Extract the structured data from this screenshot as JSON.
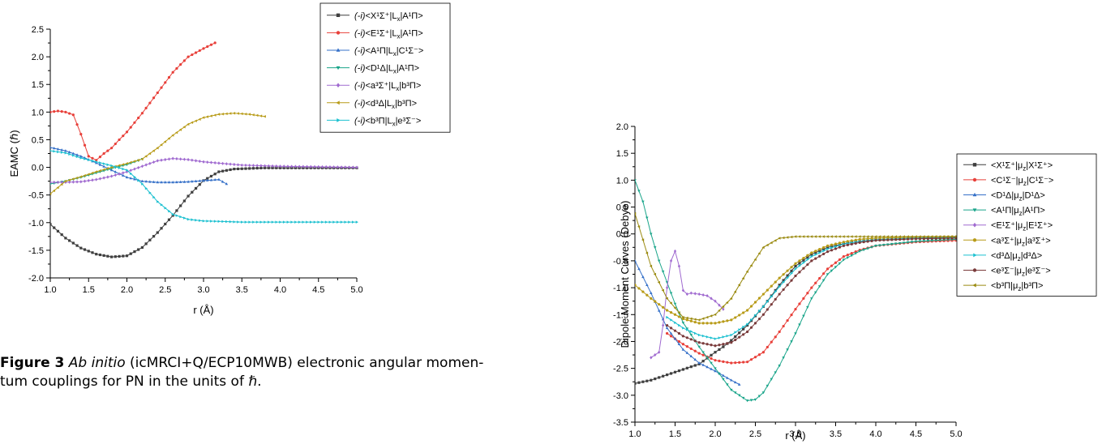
{
  "caption": {
    "label": "Figure 3",
    "italic": "Ab initio",
    "line1_rest": " (icMRCI+Q/ECP10MWB) electronic angular momen-",
    "line2": "tum couplings for PN in the units of ℏ."
  },
  "chart_data": [
    {
      "type": "line",
      "title": "",
      "xlabel": "r (Å)",
      "ylabel": "EAMC (ℏ)",
      "xlim": [
        1.0,
        5.0
      ],
      "ylim": [
        -2.0,
        2.5
      ],
      "xticks": [
        "1.0",
        "1.5",
        "2.0",
        "2.5",
        "3.0",
        "3.5",
        "4.0",
        "4.5",
        "5.0"
      ],
      "yticks": [
        "-2.0",
        "-1.5",
        "-1.0",
        "-0.5",
        "0.0",
        "0.5",
        "1.0",
        "1.5",
        "2.0",
        "2.5"
      ],
      "grid": false,
      "legend_position": "top-right",
      "series": [
        {
          "name_prefix": "(-i)",
          "name": "<X¹Σ⁺|Lx|A¹Π>",
          "color": "#3f3f3f",
          "marker": "square",
          "x": [
            1.0,
            1.2,
            1.4,
            1.6,
            1.8,
            2.0,
            2.2,
            2.4,
            2.6,
            2.8,
            3.0,
            3.2,
            3.4,
            3.6,
            3.8,
            4.0,
            4.5,
            5.0
          ],
          "y": [
            -1.03,
            -1.28,
            -1.46,
            -1.57,
            -1.62,
            -1.6,
            -1.45,
            -1.18,
            -0.87,
            -0.52,
            -0.24,
            -0.08,
            -0.03,
            -0.02,
            -0.01,
            -0.01,
            -0.01,
            -0.01
          ]
        },
        {
          "name_prefix": "(-i)",
          "name": "<E¹Σ⁺|Lx|A¹Π>",
          "color": "#e8403a",
          "marker": "circle",
          "x": [
            1.0,
            1.1,
            1.2,
            1.3,
            1.4,
            1.5,
            1.6,
            1.7,
            1.8,
            1.9,
            2.0,
            2.2,
            2.4,
            2.6,
            2.8,
            3.0,
            3.16
          ],
          "y": [
            1.0,
            1.02,
            1.0,
            0.95,
            0.6,
            0.2,
            0.13,
            0.25,
            0.35,
            0.5,
            0.64,
            0.98,
            1.35,
            1.72,
            2.0,
            2.15,
            2.26
          ]
        },
        {
          "name_prefix": "(-i)",
          "name": "<A¹Π|Lx|C¹Σ⁻>",
          "color": "#3570c8",
          "marker": "triangle",
          "x": [
            1.0,
            1.2,
            1.4,
            1.6,
            1.8,
            2.0,
            2.2,
            2.4,
            2.6,
            2.8,
            3.0,
            3.2,
            3.3
          ],
          "y": [
            0.36,
            0.3,
            0.2,
            0.08,
            -0.05,
            -0.18,
            -0.25,
            -0.27,
            -0.27,
            -0.26,
            -0.24,
            -0.22,
            -0.3
          ]
        },
        {
          "name_prefix": "(-i)",
          "name": "<D¹Δ|Lx|A¹Π>",
          "color": "#1aa58a",
          "marker": "triangle-down",
          "x": [
            1.0,
            1.2,
            1.4,
            1.6,
            1.8,
            2.0,
            2.2
          ],
          "y": [
            -0.3,
            -0.25,
            -0.18,
            -0.1,
            -0.02,
            0.05,
            0.15
          ]
        },
        {
          "name_prefix": "(-i)",
          "name": "<a³Σ⁺|Lx|b³Π>",
          "color": "#a06ad0",
          "marker": "diamond",
          "x": [
            1.0,
            1.2,
            1.4,
            1.6,
            1.8,
            2.0,
            2.2,
            2.4,
            2.6,
            2.8,
            3.0,
            3.5,
            4.0,
            4.5,
            5.0
          ],
          "y": [
            -0.27,
            -0.27,
            -0.26,
            -0.22,
            -0.16,
            -0.08,
            0.02,
            0.12,
            0.16,
            0.14,
            0.1,
            0.04,
            0.02,
            0.01,
            0.0
          ]
        },
        {
          "name_prefix": "(-i)",
          "name": "<d³Δ|Lx|b³Π>",
          "color": "#b89b18",
          "marker": "triangle-left",
          "x": [
            1.0,
            1.2,
            1.4,
            1.6,
            1.8,
            2.0,
            2.2,
            2.4,
            2.6,
            2.8,
            3.0,
            3.2,
            3.4,
            3.6,
            3.8
          ],
          "y": [
            -0.48,
            -0.25,
            -0.17,
            -0.08,
            0.0,
            0.07,
            0.15,
            0.35,
            0.58,
            0.78,
            0.9,
            0.96,
            0.98,
            0.96,
            0.92
          ]
        },
        {
          "name_prefix": "(-i)",
          "name": "<b³Π|Lx|e³Σ⁻>",
          "color": "#1cc0d0",
          "marker": "triangle-right",
          "x": [
            1.0,
            1.2,
            1.4,
            1.6,
            1.8,
            2.0,
            2.2,
            2.4,
            2.6,
            2.8,
            3.0,
            3.5,
            4.0,
            4.5,
            5.0
          ],
          "y": [
            0.3,
            0.26,
            0.17,
            0.1,
            0.03,
            -0.05,
            -0.3,
            -0.62,
            -0.85,
            -0.94,
            -0.97,
            -0.99,
            -0.99,
            -0.99,
            -0.99
          ]
        }
      ]
    },
    {
      "type": "line",
      "title": "",
      "xlabel": "r (Å)",
      "ylabel": "Dipole Moment Curves (Debye)",
      "xlim": [
        1.0,
        5.0
      ],
      "ylim": [
        -3.5,
        2.0
      ],
      "xticks": [
        "1.0",
        "1.5",
        "2.0",
        "2.5",
        "3.0",
        "3.5",
        "4.0",
        "4.5",
        "5.0"
      ],
      "yticks": [
        "-3.5",
        "-3.0",
        "-2.5",
        "-2.0",
        "-1.5",
        "-1.0",
        "-0.5",
        "0.0",
        "0.5",
        "1.0",
        "1.5",
        "2.0"
      ],
      "grid": false,
      "legend_position": "right",
      "series": [
        {
          "name": "<X¹Σ⁺|μz|X¹Σ⁺>",
          "color": "#3f3f3f",
          "marker": "square",
          "x": [
            1.0,
            1.2,
            1.4,
            1.6,
            1.8,
            2.0,
            2.1,
            2.2,
            2.4,
            2.6,
            2.8,
            3.0,
            3.2,
            3.4,
            3.6,
            3.8,
            4.0,
            4.5,
            5.0
          ],
          "y": [
            -2.78,
            -2.72,
            -2.62,
            -2.52,
            -2.42,
            -2.2,
            -2.1,
            -1.98,
            -1.7,
            -1.35,
            -0.95,
            -0.6,
            -0.38,
            -0.25,
            -0.18,
            -0.14,
            -0.11,
            -0.08,
            -0.06
          ]
        },
        {
          "name": "<C¹Σ⁻|μz|C¹Σ⁻>",
          "color": "#e8403a",
          "marker": "circle",
          "x": [
            1.4,
            1.6,
            1.8,
            2.0,
            2.2,
            2.4,
            2.6,
            2.8,
            3.0,
            3.2,
            3.4,
            3.6,
            3.8,
            4.0,
            4.5,
            5.0
          ],
          "y": [
            -1.85,
            -2.05,
            -2.22,
            -2.35,
            -2.4,
            -2.38,
            -2.2,
            -1.82,
            -1.4,
            -1.0,
            -0.65,
            -0.42,
            -0.3,
            -0.22,
            -0.15,
            -0.12
          ]
        },
        {
          "name": "<D¹Δ|μz|D¹Δ>",
          "color": "#3570c8",
          "marker": "triangle",
          "x": [
            1.0,
            1.2,
            1.4,
            1.6,
            1.8,
            2.0,
            2.2,
            2.3
          ],
          "y": [
            -0.5,
            -1.1,
            -1.75,
            -2.15,
            -2.4,
            -2.55,
            -2.72,
            -2.8
          ]
        },
        {
          "name": "<A¹Π|μz|A¹Π>",
          "color": "#1aa58a",
          "marker": "triangle-down",
          "x": [
            1.0,
            1.1,
            1.2,
            1.3,
            1.4,
            1.5,
            1.6,
            1.8,
            2.0,
            2.2,
            2.4,
            2.5,
            2.6,
            2.8,
            3.0,
            3.2,
            3.4,
            3.6,
            3.8,
            4.0,
            4.5,
            5.0
          ],
          "y": [
            1.0,
            0.6,
            0.0,
            -0.5,
            -0.9,
            -1.3,
            -1.65,
            -2.1,
            -2.5,
            -2.9,
            -3.1,
            -3.08,
            -2.95,
            -2.45,
            -1.85,
            -1.2,
            -0.75,
            -0.48,
            -0.32,
            -0.22,
            -0.14,
            -0.1
          ]
        },
        {
          "name": "<E¹Σ⁺|μz|E¹Σ⁺>",
          "color": "#a06ad0",
          "marker": "diamond",
          "x": [
            1.2,
            1.3,
            1.35,
            1.4,
            1.45,
            1.5,
            1.55,
            1.6,
            1.65,
            1.7,
            1.8,
            1.9,
            2.0,
            2.1
          ],
          "y": [
            -2.3,
            -2.2,
            -1.7,
            -1.0,
            -0.5,
            -0.32,
            -0.6,
            -1.05,
            -1.12,
            -1.1,
            -1.12,
            -1.15,
            -1.25,
            -1.4
          ]
        },
        {
          "name": "<a³Σ⁺|μz|a³Σ⁺>",
          "color": "#b89b18",
          "marker": "circle",
          "x": [
            1.0,
            1.2,
            1.4,
            1.6,
            1.8,
            2.0,
            2.2,
            2.4,
            2.6,
            2.8,
            3.0,
            3.2,
            3.4,
            3.6,
            3.8,
            4.0,
            4.5,
            5.0
          ],
          "y": [
            -0.95,
            -1.2,
            -1.42,
            -1.58,
            -1.66,
            -1.66,
            -1.6,
            -1.42,
            -1.12,
            -0.82,
            -0.55,
            -0.35,
            -0.22,
            -0.15,
            -0.1,
            -0.08,
            -0.06,
            -0.05
          ]
        },
        {
          "name": "<d³Δ|μz|d³Δ>",
          "color": "#1cc0d0",
          "marker": "triangle-right",
          "x": [
            1.4,
            1.6,
            1.8,
            2.0,
            2.2,
            2.4,
            2.6,
            2.8,
            3.0,
            3.2,
            3.4,
            3.6,
            3.8,
            4.0,
            4.5,
            5.0
          ],
          "y": [
            -1.55,
            -1.75,
            -1.88,
            -1.95,
            -1.88,
            -1.68,
            -1.35,
            -0.98,
            -0.65,
            -0.42,
            -0.28,
            -0.19,
            -0.14,
            -0.11,
            -0.08,
            -0.07
          ]
        },
        {
          "name": "<e³Σ⁻|μz|e³Σ⁻>",
          "color": "#7a3b3b",
          "marker": "circle",
          "x": [
            1.4,
            1.6,
            1.8,
            2.0,
            2.2,
            2.4,
            2.6,
            2.8,
            3.0,
            3.2,
            3.4,
            3.6,
            3.8,
            4.0,
            4.5,
            5.0
          ],
          "y": [
            -1.7,
            -1.9,
            -2.02,
            -2.08,
            -2.02,
            -1.82,
            -1.5,
            -1.12,
            -0.78,
            -0.5,
            -0.33,
            -0.22,
            -0.16,
            -0.12,
            -0.09,
            -0.08
          ]
        },
        {
          "name": "<b³Π|μz|b³Π>",
          "color": "#9a8a10",
          "marker": "triangle-left",
          "x": [
            1.0,
            1.2,
            1.4,
            1.6,
            1.8,
            2.0,
            2.2,
            2.4,
            2.6,
            2.8,
            3.0,
            3.5,
            4.0,
            4.5,
            5.0
          ],
          "y": [
            0.38,
            -0.6,
            -1.2,
            -1.55,
            -1.6,
            -1.5,
            -1.2,
            -0.7,
            -0.25,
            -0.08,
            -0.05,
            -0.05,
            -0.05,
            -0.05,
            -0.05
          ]
        }
      ]
    }
  ]
}
